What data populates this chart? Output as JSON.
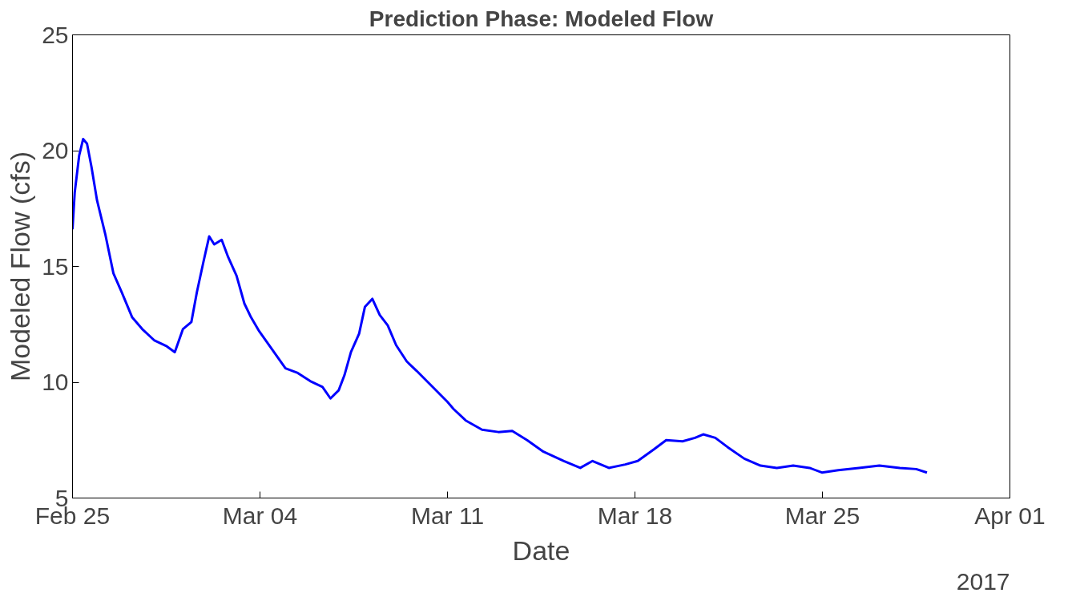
{
  "chart_data": {
    "type": "line",
    "title": "Prediction Phase: Modeled Flow",
    "xlabel": "Date",
    "ylabel": "Modeled Flow (cfs)",
    "annotations": [
      "2017"
    ],
    "x": [
      "2017-02-25T00:00",
      "2017-02-25T02:00",
      "2017-02-25T06:00",
      "2017-02-25T09:30",
      "2017-02-25T13:00",
      "2017-02-25T17:00",
      "2017-02-25T22:00",
      "2017-02-26T05:20",
      "2017-02-26T12:40",
      "2017-02-26T20:00",
      "2017-02-27T05:30",
      "2017-02-27T14:25",
      "2017-02-28T01:30",
      "2017-02-28T12:30",
      "2017-02-28T19:40",
      "2017-03-01T03:00",
      "2017-03-01T10:30",
      "2017-03-01T15:30",
      "2017-03-01T21:20",
      "2017-03-02T02:30",
      "2017-03-02T07:00",
      "2017-03-02T13:40",
      "2017-03-02T19:30",
      "2017-03-03T03:00",
      "2017-03-03T10:00",
      "2017-03-03T16:00",
      "2017-03-03T23:20",
      "2017-03-04T22:50",
      "2017-03-05T09:50",
      "2017-03-05T21:00",
      "2017-03-06T08:00",
      "2017-03-06T15:10",
      "2017-03-06T22:30",
      "2017-03-07T03:40",
      "2017-03-07T09:30",
      "2017-03-07T16:50",
      "2017-03-07T22:00",
      "2017-03-08T04:40",
      "2017-03-08T11:20",
      "2017-03-08T18:30",
      "2017-03-09T02:00",
      "2017-03-09T11:30",
      "2017-03-09T20:10",
      "2017-03-11T00:00",
      "2017-03-11T05:20",
      "2017-03-11T16:20",
      "2017-03-12T07:00",
      "2017-03-12T21:40",
      "2017-03-13T10:00",
      "2017-03-13T23:20",
      "2017-03-14T14:00",
      "2017-03-15T08:20",
      "2017-03-15T23:00",
      "2017-03-16T10:00",
      "2017-03-17T00:40",
      "2017-03-17T15:20",
      "2017-03-18T02:30",
      "2017-03-18T17:00",
      "2017-03-19T04:00",
      "2017-03-19T18:40",
      "2017-03-20T05:50",
      "2017-03-20T13:10",
      "2017-03-21T00:00",
      "2017-03-21T11:00",
      "2017-03-22T02:00",
      "2017-03-22T16:30",
      "2017-03-23T07:10",
      "2017-03-23T21:50",
      "2017-03-24T12:30",
      "2017-03-24T23:30",
      "2017-03-25T14:10",
      "2017-03-26T08:40",
      "2017-03-27T03:00",
      "2017-03-27T21:20",
      "2017-03-28T12:00",
      "2017-03-28T21:40"
    ],
    "series": [
      {
        "color": "#0000ff",
        "values": [
          16.6,
          18.2,
          19.8,
          20.5,
          20.3,
          19.3,
          17.85,
          16.4,
          14.7,
          13.9,
          12.8,
          12.3,
          11.8,
          11.55,
          11.3,
          12.3,
          12.6,
          13.9,
          15.2,
          16.3,
          15.95,
          16.15,
          15.4,
          14.6,
          13.4,
          12.8,
          12.2,
          10.6,
          10.4,
          10.05,
          9.8,
          9.3,
          9.65,
          10.3,
          11.3,
          12.1,
          13.25,
          13.6,
          12.9,
          12.45,
          11.6,
          10.9,
          10.5,
          9.15,
          8.85,
          8.35,
          7.95,
          7.85,
          7.9,
          7.5,
          7.0,
          6.6,
          6.3,
          6.6,
          6.3,
          6.45,
          6.6,
          7.1,
          7.5,
          7.45,
          7.6,
          7.75,
          7.6,
          7.2,
          6.7,
          6.4,
          6.3,
          6.4,
          6.3,
          6.1,
          6.2,
          6.3,
          6.4,
          6.3,
          6.25,
          6.1
        ]
      }
    ],
    "xlim": [
      "2017-02-25",
      "2017-04-01"
    ],
    "xticks": [
      {
        "value": "2017-02-25",
        "label": "Feb 25"
      },
      {
        "value": "2017-03-04",
        "label": "Mar 04"
      },
      {
        "value": "2017-03-11",
        "label": "Mar 11"
      },
      {
        "value": "2017-03-18",
        "label": "Mar 18"
      },
      {
        "value": "2017-03-25",
        "label": "Mar 25"
      },
      {
        "value": "2017-04-01",
        "label": "Apr 01"
      }
    ],
    "ylim": [
      5,
      25
    ],
    "yticks": [
      5,
      10,
      15,
      20,
      25
    ],
    "grid": false,
    "marker": "none",
    "line_style": "solid"
  }
}
